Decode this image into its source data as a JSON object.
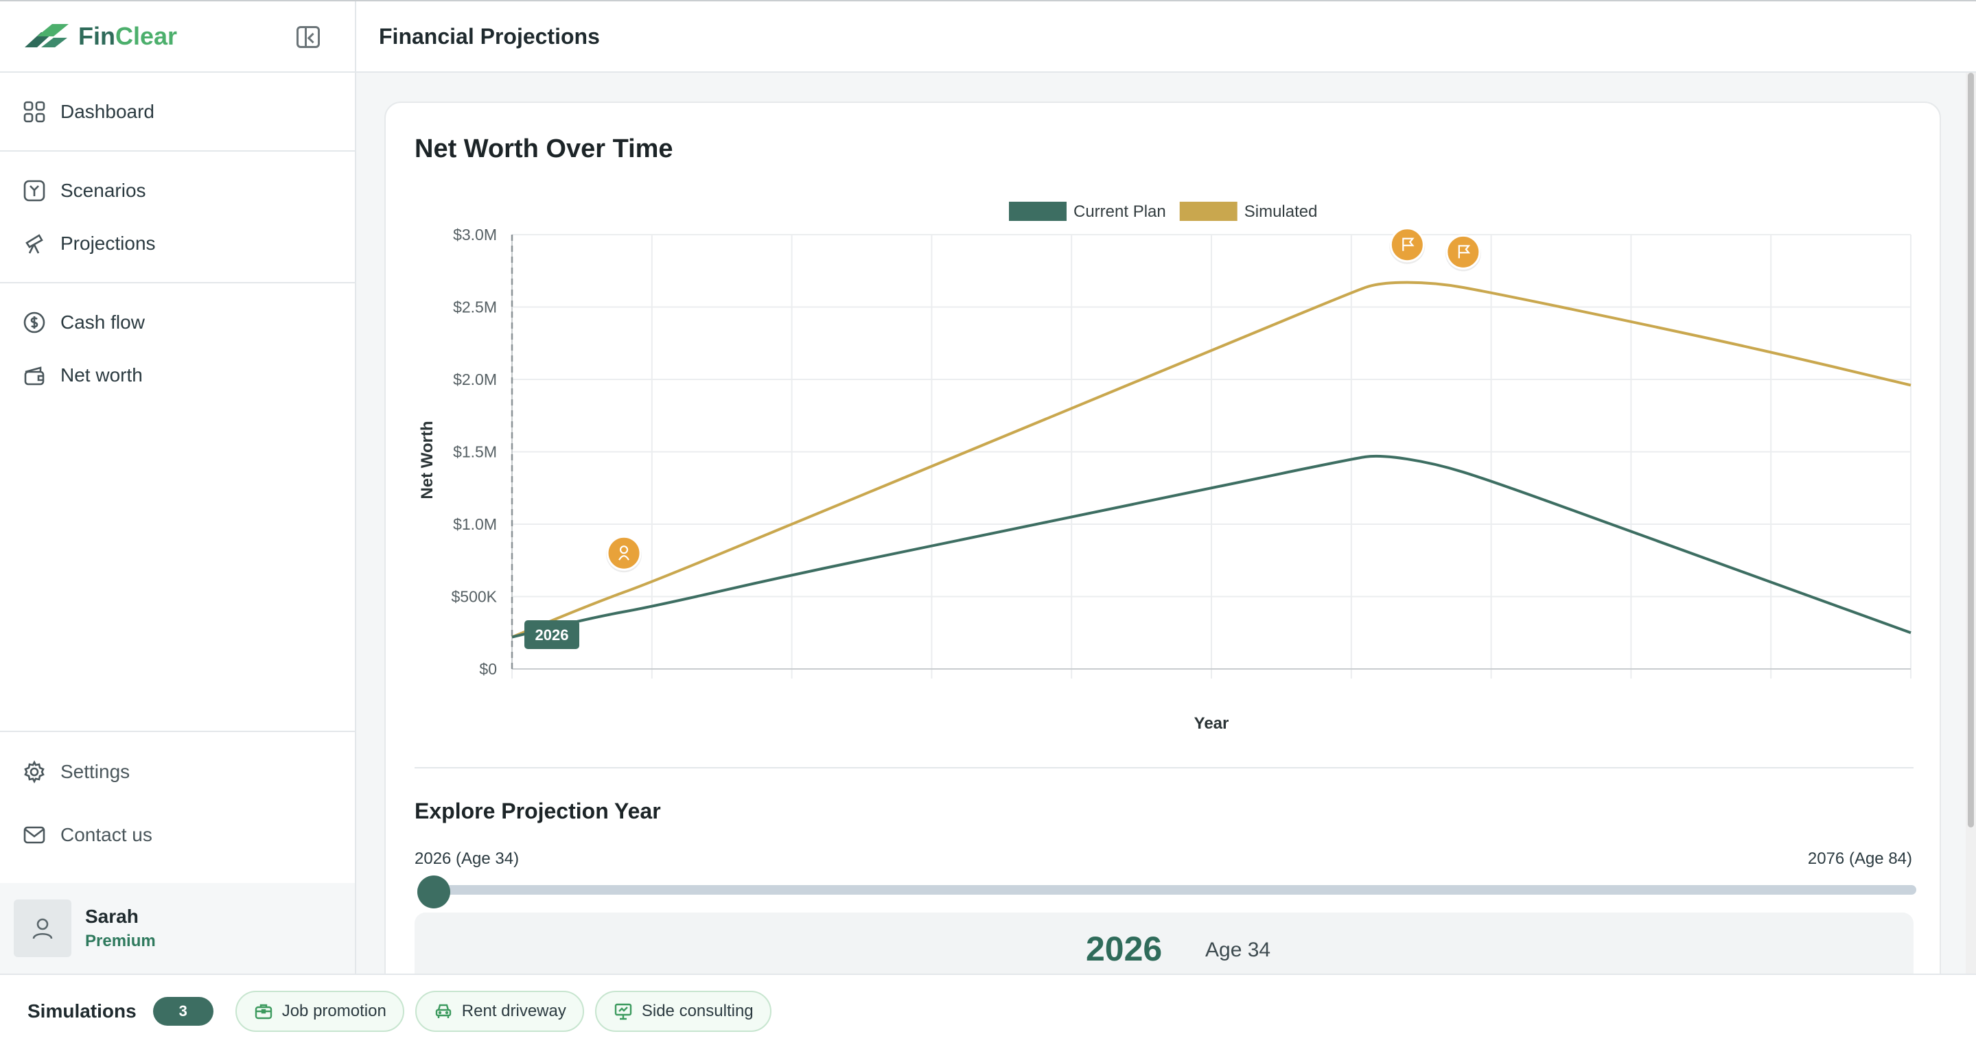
{
  "app": {
    "brand_fin": "Fin",
    "brand_clear": "Clear"
  },
  "header": {
    "title": "Financial Projections"
  },
  "sidebar": {
    "groups": [
      [
        {
          "label": "Dashboard",
          "icon": "grid-icon"
        }
      ],
      [
        {
          "label": "Scenarios",
          "icon": "scenarios-icon"
        },
        {
          "label": "Projections",
          "icon": "telescope-icon"
        }
      ],
      [
        {
          "label": "Cash flow",
          "icon": "dollar-circle-icon"
        },
        {
          "label": "Net worth",
          "icon": "wallet-icon"
        }
      ]
    ],
    "bottom": [
      {
        "label": "Settings",
        "icon": "gear-icon"
      },
      {
        "label": "Contact us",
        "icon": "mail-icon"
      }
    ],
    "user": {
      "name": "Sarah",
      "plan": "Premium"
    }
  },
  "card": {
    "title": "Net Worth Over Time",
    "explore_title": "Explore Projection Year",
    "range_start": "2026 (Age 34)",
    "range_end": "2076 (Age 84)",
    "slider_value": 0,
    "selected_year": "2026",
    "selected_age": "Age 34"
  },
  "chart_data": {
    "type": "line",
    "title": "Net Worth Over Time",
    "xlabel": "Year",
    "ylabel": "Net Worth",
    "x_range": [
      2026,
      2076
    ],
    "ylim": [
      0,
      3000000
    ],
    "yticks": [
      "$0",
      "$500K",
      "$1.0M",
      "$1.5M",
      "$2.0M",
      "$2.5M",
      "$3.0M"
    ],
    "ytick_values": [
      0,
      500000,
      1000000,
      1500000,
      2000000,
      2500000,
      3000000
    ],
    "legend": "top-center",
    "grid": true,
    "current_year_marker": "2026",
    "series": [
      {
        "name": "Current Plan",
        "color": "#3d6e62",
        "points": [
          [
            2026,
            220000
          ],
          [
            2029,
            360000
          ],
          [
            2031,
            430000
          ],
          [
            2036,
            650000
          ],
          [
            2041,
            850000
          ],
          [
            2046,
            1050000
          ],
          [
            2051,
            1250000
          ],
          [
            2056,
            1450000
          ],
          [
            2057,
            1480000
          ],
          [
            2059,
            1420000
          ],
          [
            2061,
            1300000
          ],
          [
            2066,
            950000
          ],
          [
            2071,
            600000
          ],
          [
            2076,
            250000
          ]
        ]
      },
      {
        "name": "Simulated",
        "color": "#c9a74e",
        "points": [
          [
            2026,
            220000
          ],
          [
            2029,
            460000
          ],
          [
            2031,
            600000
          ],
          [
            2036,
            1000000
          ],
          [
            2041,
            1400000
          ],
          [
            2046,
            1800000
          ],
          [
            2051,
            2200000
          ],
          [
            2056,
            2600000
          ],
          [
            2057,
            2670000
          ],
          [
            2059,
            2670000
          ],
          [
            2061,
            2600000
          ],
          [
            2066,
            2400000
          ],
          [
            2071,
            2190000
          ],
          [
            2076,
            1960000
          ]
        ]
      }
    ],
    "events": [
      {
        "x": 2030,
        "y": 800000,
        "icon": "person-icon"
      },
      {
        "x": 2058,
        "y": 2930000,
        "icon": "flag-icon"
      },
      {
        "x": 2060,
        "y": 2880000,
        "icon": "flag-icon"
      }
    ]
  },
  "bottom_bar": {
    "label": "Simulations",
    "count": "3",
    "chips": [
      {
        "label": "Job promotion",
        "icon": "briefcase-icon"
      },
      {
        "label": "Rent driveway",
        "icon": "car-icon"
      },
      {
        "label": "Side consulting",
        "icon": "presentation-icon"
      }
    ]
  },
  "colors": {
    "accent": "#3d6e62",
    "simulated": "#c9a74e",
    "event_marker": "#e8a23a",
    "brand_green": "#4caf6c"
  }
}
